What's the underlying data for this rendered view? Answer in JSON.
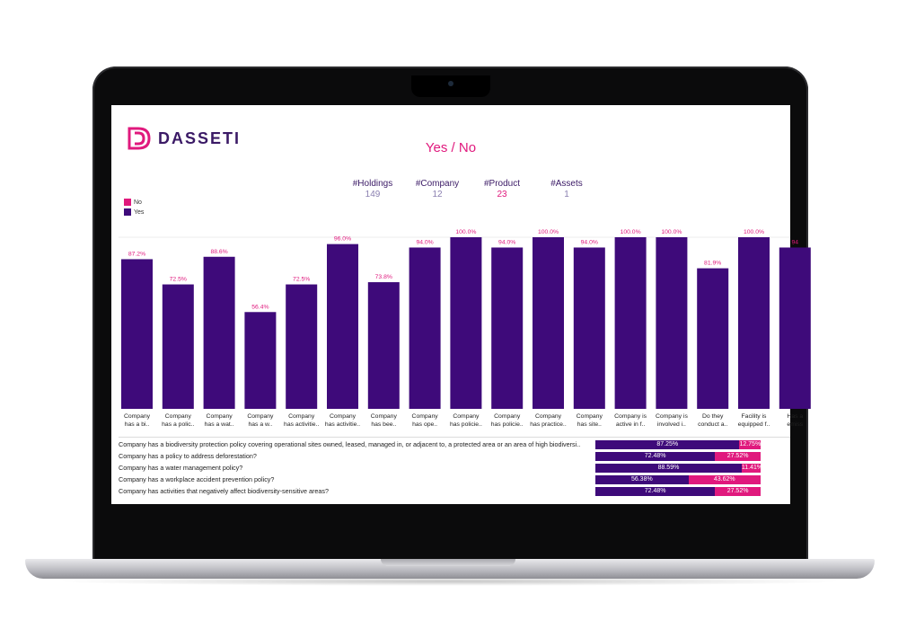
{
  "app": {
    "logo_text": "DASSETI",
    "logo_icon": "dasseti-logo-icon"
  },
  "colors": {
    "yes": "#3e0a7a",
    "no": "#e0197d",
    "title": "#e0197d",
    "kpi_label": "#3b1a66"
  },
  "kpis": [
    {
      "label": "#Holdings",
      "value": "149"
    },
    {
      "label": "#Company",
      "value": "12"
    },
    {
      "label": "#Product",
      "value": "23"
    },
    {
      "label": "#Assets",
      "value": "1"
    }
  ],
  "legend": [
    {
      "label": "No"
    },
    {
      "label": "Yes"
    }
  ],
  "chart_data": {
    "type": "bar",
    "title": "Yes / No",
    "categories": [
      [
        "Company",
        "has a bi.."
      ],
      [
        "Company",
        "has a polic.."
      ],
      [
        "Company",
        "has a wat.."
      ],
      [
        "Company",
        "has a w.."
      ],
      [
        "Company",
        "has activitie.."
      ],
      [
        "Company",
        "has activitie.."
      ],
      [
        "Company",
        "has bee.."
      ],
      [
        "Company",
        "has ope.."
      ],
      [
        "Company",
        "has policie.."
      ],
      [
        "Company",
        "has policie.."
      ],
      [
        "Company",
        "has practice.."
      ],
      [
        "Company",
        "has site.."
      ],
      [
        "Company is",
        "active in f.."
      ],
      [
        "Company is",
        "involved i.."
      ],
      [
        "Do they",
        "conduct a.."
      ],
      [
        "Facility is",
        "equipped f.."
      ],
      [
        "Has a",
        "emiss"
      ]
    ],
    "series": [
      {
        "name": "Yes",
        "values": [
          87.2,
          72.5,
          88.6,
          56.4,
          72.5,
          96.0,
          73.8,
          94.0,
          100.0,
          94.0,
          100.0,
          94.0,
          100.0,
          100.0,
          81.9,
          100.0,
          94.0
        ]
      }
    ],
    "labels": [
      "87.2%",
      "72.5%",
      "88.6%",
      "56.4%",
      "72.5%",
      "96.0%",
      "73.8%",
      "94.0%",
      "100.0%",
      "94.0%",
      "100.0%",
      "94.0%",
      "100.0%",
      "100.0%",
      "81.9%",
      "100.0%",
      "94"
    ],
    "ylim": [
      0,
      100
    ],
    "grid": false
  },
  "table": {
    "rows": [
      {
        "question": "Company has a biodiversity protection policy covering operational sites owned, leased, managed in, or adjacent to, a protected area or an area of high biodiversi..",
        "yes": 87.25,
        "no": 12.75,
        "yes_label": "87.25%",
        "no_label": "12.75%"
      },
      {
        "question": "Company has a policy to address deforestation?",
        "yes": 72.48,
        "no": 27.52,
        "yes_label": "72.48%",
        "no_label": "27.52%"
      },
      {
        "question": "Company has a water management policy?",
        "yes": 88.59,
        "no": 11.41,
        "yes_label": "88.59%",
        "no_label": "11.41%"
      },
      {
        "question": "Company has a workplace accident prevention policy?",
        "yes": 56.38,
        "no": 43.62,
        "yes_label": "56.38%",
        "no_label": "43.62%"
      },
      {
        "question": "Company has activities that negatively affect biodiversity-sensitive areas?",
        "yes": 72.48,
        "no": 27.52,
        "yes_label": "72.48%",
        "no_label": "27.52%"
      }
    ]
  }
}
